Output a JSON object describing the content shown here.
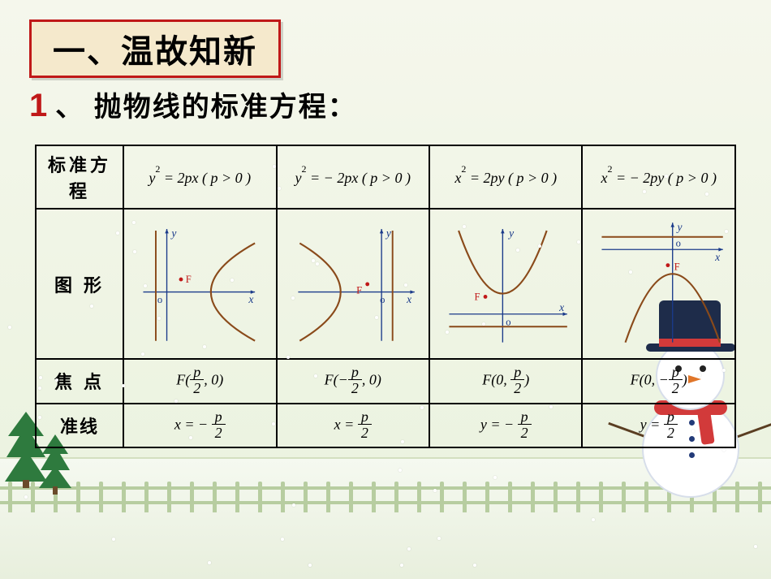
{
  "title": "一、温故知新",
  "subtitle_num": "1",
  "subtitle_text": "、 抛物线的标准方程：",
  "colors": {
    "title_border": "#c01818",
    "title_bg": "#f5e9cc",
    "subtitle_num": "#c01818",
    "axis": "#1a3a8a",
    "curve": "#8a4a1a",
    "focus": "#c01818",
    "page_bg_top": "#f5f7ec",
    "page_bg_bottom": "#e9f2de"
  },
  "row_headers": {
    "eq": "标准方程",
    "graph": "图  形",
    "focus": "焦   点",
    "directrix": "准线"
  },
  "columns": [
    {
      "equation_html": "y<sup>2</sup> = 2px ( p > 0 )",
      "orientation": "right",
      "focus_label": "F",
      "focus_text_pre": "F(",
      "focus_frac_n": "p",
      "focus_frac_d": "2",
      "focus_text_post": ", 0)",
      "focus_sign": "",
      "directrix_var": "x",
      "directrix_sign": "−",
      "directrix_frac_n": "p",
      "directrix_frac_d": "2"
    },
    {
      "equation_html": "y<sup>2</sup> = − 2px ( p > 0 )",
      "orientation": "left",
      "focus_label": "F",
      "focus_text_pre": "F(−",
      "focus_frac_n": "p",
      "focus_frac_d": "2",
      "focus_text_post": ", 0)",
      "directrix_var": "x",
      "directrix_sign": "",
      "directrix_frac_n": "p",
      "directrix_frac_d": "2"
    },
    {
      "equation_html": "x<sup>2</sup> = 2py ( p > 0 )",
      "orientation": "up",
      "focus_label": "F",
      "focus_text_pre": "F(0, ",
      "focus_frac_n": "p",
      "focus_frac_d": "2",
      "focus_text_post": ")",
      "directrix_var": "y",
      "directrix_sign": "−",
      "directrix_frac_n": "p",
      "directrix_frac_d": "2"
    },
    {
      "equation_html": "x<sup>2</sup> = − 2py ( p > 0 )",
      "orientation": "down",
      "focus_label": "F",
      "focus_text_pre": "F(0, −",
      "focus_frac_n": "p",
      "focus_frac_d": "2",
      "focus_text_post": ")",
      "directrix_var": "y",
      "directrix_sign": "",
      "directrix_frac_n": "p",
      "directrix_frac_d": "2"
    }
  ],
  "graph": {
    "axis_labels": {
      "x": "x",
      "y": "y",
      "o": "o"
    },
    "arrow_size": 5
  },
  "snowman": {
    "hat_color": "#1e2c4a",
    "band_color": "#d23a3a",
    "scarf_color": "#d23a3a"
  },
  "trees": {
    "color": "#2e7a3e",
    "trunk": "#6a4a2a"
  }
}
